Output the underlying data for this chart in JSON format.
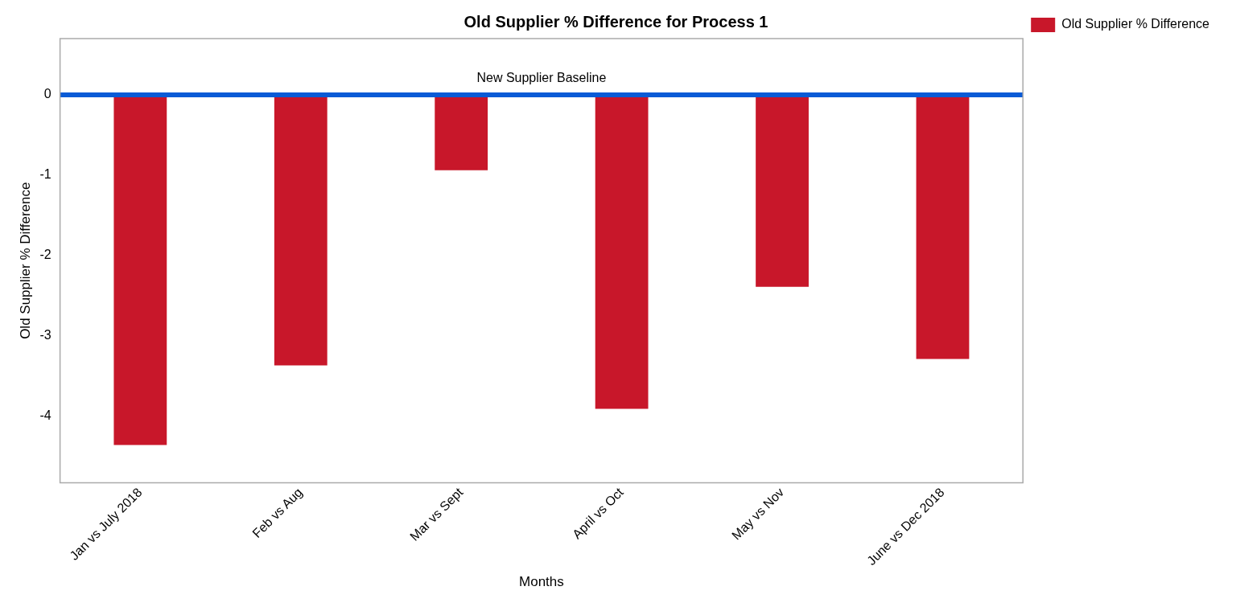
{
  "chart_data": {
    "type": "bar",
    "title": "Old Supplier % Difference for Process 1",
    "xlabel": "Months",
    "ylabel": "Old Supplier % Difference",
    "categories": [
      "Jan vs July 2018",
      "Feb vs Aug",
      "Mar vs Sept",
      "April vs Oct",
      "May vs Nov",
      "June vs Dec 2018"
    ],
    "series": [
      {
        "name": "Old Supplier % Difference",
        "color": "#c8172a",
        "values": [
          -4.36,
          -3.37,
          -0.94,
          -3.91,
          -2.39,
          -3.29
        ]
      }
    ],
    "ylim": [
      -4.83,
      0.7
    ],
    "yticks": [
      0,
      -1,
      -2,
      -3,
      -4
    ],
    "grid": false,
    "legend": "top right",
    "ref_lines": [
      {
        "axis": "y",
        "value": 0,
        "label": "New Supplier Baseline",
        "color": "#0a5bd6"
      }
    ]
  }
}
